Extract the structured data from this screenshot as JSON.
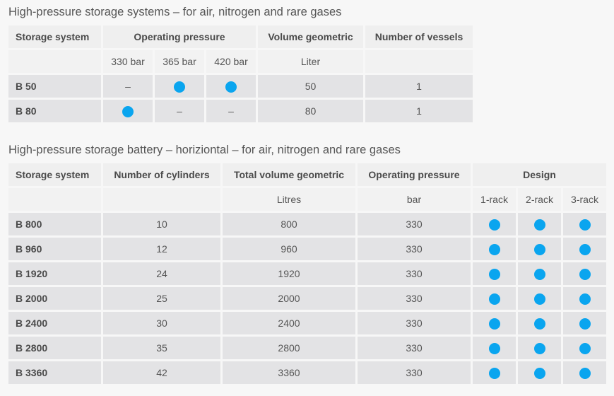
{
  "colors": {
    "dot": "#0aa5ef"
  },
  "table1": {
    "caption": "High-pressure storage systems – for air, nitrogen and rare gases",
    "headers": {
      "storage_system": "Storage system",
      "operating_pressure": "Operating pressure",
      "volume": "Volume geometric",
      "vessels": "Number of vessels"
    },
    "units": {
      "p330": "330 bar",
      "p365": "365 bar",
      "p420": "420 bar",
      "volume": "Liter"
    },
    "rows": [
      {
        "name": "B 50",
        "p330": "–",
        "p365": "dot-icon",
        "p420": "dot-icon",
        "volume": "50",
        "vessels": "1"
      },
      {
        "name": "B 80",
        "p330": "dot-icon",
        "p365": "–",
        "p420": "–",
        "volume": "80",
        "vessels": "1"
      }
    ]
  },
  "table2": {
    "caption": "High-pressure storage battery – horiziontal – for air, nitrogen and rare gases",
    "headers": {
      "storage_system": "Storage system",
      "cylinders": "Number of cylinders",
      "volume": "Total volume geometric",
      "pressure": "Operating pressure",
      "design": "Design"
    },
    "units": {
      "volume": "Litres",
      "pressure": "bar",
      "rack1": "1-rack",
      "rack2": "2-rack",
      "rack3": "3-rack"
    },
    "rows": [
      {
        "name": "B 800",
        "cylinders": "10",
        "volume": "800",
        "pressure": "330",
        "rack1": "dot-icon",
        "rack2": "dot-icon",
        "rack3": "dot-icon"
      },
      {
        "name": "B 960",
        "cylinders": "12",
        "volume": "960",
        "pressure": "330",
        "rack1": "dot-icon",
        "rack2": "dot-icon",
        "rack3": "dot-icon"
      },
      {
        "name": "B 1920",
        "cylinders": "24",
        "volume": "1920",
        "pressure": "330",
        "rack1": "dot-icon",
        "rack2": "dot-icon",
        "rack3": "dot-icon"
      },
      {
        "name": "B 2000",
        "cylinders": "25",
        "volume": "2000",
        "pressure": "330",
        "rack1": "dot-icon",
        "rack2": "dot-icon",
        "rack3": "dot-icon"
      },
      {
        "name": "B 2400",
        "cylinders": "30",
        "volume": "2400",
        "pressure": "330",
        "rack1": "dot-icon",
        "rack2": "dot-icon",
        "rack3": "dot-icon"
      },
      {
        "name": "B 2800",
        "cylinders": "35",
        "volume": "2800",
        "pressure": "330",
        "rack1": "dot-icon",
        "rack2": "dot-icon",
        "rack3": "dot-icon"
      },
      {
        "name": "B 3360",
        "cylinders": "42",
        "volume": "3360",
        "pressure": "330",
        "rack1": "dot-icon",
        "rack2": "dot-icon",
        "rack3": "dot-icon"
      }
    ]
  }
}
